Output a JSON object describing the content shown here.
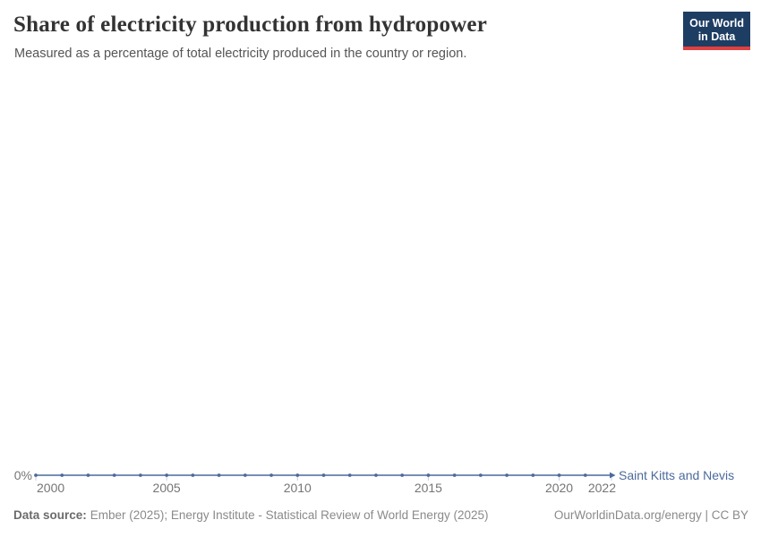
{
  "chart_data": {
    "type": "line",
    "title": "Share of electricity production from hydropower",
    "subtitle": "Measured as a percentage of total electricity produced in the country or region.",
    "x": [
      2000,
      2001,
      2002,
      2003,
      2004,
      2005,
      2006,
      2007,
      2008,
      2009,
      2010,
      2011,
      2012,
      2013,
      2014,
      2015,
      2016,
      2017,
      2018,
      2019,
      2020,
      2021,
      2022
    ],
    "series": [
      {
        "name": "Saint Kitts and Nevis",
        "color": "#4C6A9C",
        "values": [
          0,
          0,
          0,
          0,
          0,
          0,
          0,
          0,
          0,
          0,
          0,
          0,
          0,
          0,
          0,
          0,
          0,
          0,
          0,
          0,
          0,
          0,
          0
        ]
      }
    ],
    "x_ticks": [
      2000,
      2005,
      2010,
      2015,
      2020,
      2022
    ],
    "y_ticks": [
      "0%"
    ],
    "ylim": [
      0,
      100
    ],
    "grid": false,
    "legend_position": "end-of-line"
  },
  "logo": {
    "line1": "Our World",
    "line2": "in Data"
  },
  "footer": {
    "source_label": "Data source:",
    "source_text": "Ember (2025); Energy Institute - Statistical Review of World Energy (2025)",
    "credit": "OurWorldinData.org/energy | CC BY"
  },
  "colors": {
    "line": "#4C6A9C",
    "axis_text": "#757575",
    "tick_mark": "#c7cedb",
    "title": "#333333",
    "subtitle": "#555555",
    "footer": "#8a8a8a",
    "logo_bg": "#1d3d63",
    "logo_accent": "#e0403f"
  }
}
